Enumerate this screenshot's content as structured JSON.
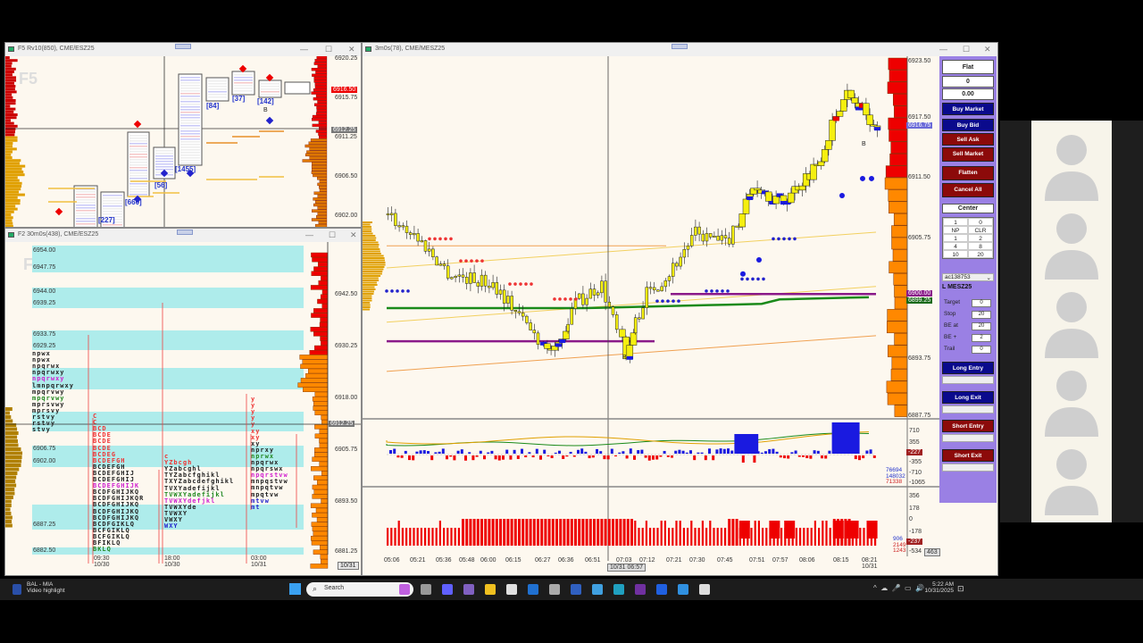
{
  "windows": {
    "top_left": {
      "title": "F5 Rv10(850), CME/ESZ25",
      "watermark": "F5",
      "price_axis": [
        "6920.25",
        "6915.75",
        "6911.25",
        "6906.50",
        "6902.00"
      ],
      "last_price": "6916.50",
      "crosshair_price": "6912.25",
      "bar_counts": [
        "[227]",
        "[660]",
        "[56]",
        "[1455]",
        "[84]",
        "[37]",
        "[142]"
      ],
      "marker_b": "B"
    },
    "bottom_left": {
      "title": "F2 30m0s(438), CME/ESZ25",
      "watermark": "F",
      "band_labels": [
        "6954.00",
        "6947.75",
        "6944.00",
        "6939.25",
        "6933.75",
        "6929.25",
        "6906.75",
        "6902.00",
        "6887.25",
        "6882.50"
      ],
      "price_axis": [
        "6942.50",
        "6930.25",
        "6918.00",
        "6905.75",
        "6893.50",
        "6881.25"
      ],
      "crosshair_price": "6912.25",
      "time_axis": [
        {
          "t": "09:30",
          "d": "10/30"
        },
        {
          "t": "18:00",
          "d": "10/30"
        },
        {
          "t": "03:00",
          "d": "10/31"
        }
      ],
      "corner_label": "10/31",
      "profile1": [
        "npwx",
        "npwx",
        "npqrwx",
        "npqrwxy",
        "npqrwxy",
        "lmnpqrwxy",
        "mpqrvwy",
        "mpqrvwy",
        "mprsvwy",
        "mprsvy",
        "rstvy",
        "rstvy",
        "stvy"
      ],
      "profile2": [
        "C",
        "C",
        "BCD",
        "BCDE",
        "BCDE",
        "BCDE",
        "BCDEG",
        "BCDEFGH",
        "BCDEFGH",
        "BCDEFGHIJ",
        "BCDEFGHIJ",
        "BCDEFGHIJK",
        "BCDFGHIJKQ",
        "BCDFGHIJKQR",
        "BCDFGHIJKQ",
        "BCDFGHIJKQ",
        "BCDFGHIJKQ",
        "BCDFGIKLQ",
        "BCFGIKLQ",
        "BCFGIKLQ",
        "BFIKLQ",
        "BKLQ"
      ],
      "profile3": [
        "c",
        "YZbcgh",
        "YZabcghl",
        "TYZabcfghikl",
        "TXYZabcdefghikl",
        "TVXYadefijkl",
        "TVWXYadefijkl",
        "TVWXYdefjkl",
        "TVWXYde",
        "TVWXY",
        "VWXY",
        "WXY"
      ],
      "profile4": [
        "y",
        "y",
        "y",
        "y",
        "y",
        "xy",
        "xy",
        "xy",
        "nprxy",
        "nprwx",
        "npqrwx",
        "npqrswx",
        "npqrstvw",
        "mnpqstvw",
        "mnpqtvw",
        "mpqtvw",
        "mtvw",
        "mt"
      ]
    },
    "main": {
      "title": "3m0s(78), CME/MESZ25",
      "price_axis": [
        "6923.50",
        "6917.50",
        "6911.50",
        "6905.75",
        "6893.75",
        "6887.75"
      ],
      "last_price": "6916.75",
      "poc_price": "6900.00",
      "vwap_price": "6899.25",
      "marker_b": "B",
      "time_axis": [
        "05:06",
        "05:21",
        "05:36",
        "05:48",
        "06:00",
        "06:15",
        "06:27",
        "06:36",
        "06:51",
        "07:03",
        "07:12",
        "07:21",
        "07:30",
        "07:45",
        "07:51",
        "07:57",
        "08:06",
        "08:15",
        "08:21"
      ],
      "date_under_last_tick": "10/31",
      "crosshair_time": "10/31 06:57",
      "pane1_axis": [
        "710",
        "355",
        "-355",
        "-710",
        "-1065"
      ],
      "pane1_value": "-227",
      "pane1_readouts": [
        {
          "v": "76694",
          "c": "#2233cc"
        },
        {
          "v": "148032",
          "c": "#2233cc"
        },
        {
          "v": "71338",
          "c": "#cc2222"
        }
      ],
      "pane2_axis": [
        "356",
        "178",
        "0",
        "-178",
        "-534"
      ],
      "pane2_value": "-237",
      "pane2_corner": "463",
      "pane2_readouts": [
        {
          "v": "906",
          "c": "#2233cc"
        },
        {
          "v": "2149",
          "c": "#cc2222"
        },
        {
          "v": "1243",
          "c": "#cc2222"
        }
      ]
    }
  },
  "order_panel": {
    "position": "Flat",
    "qty": "0",
    "pnl": "0.00",
    "buy_market": "Buy Market",
    "buy_bid": "Buy Bid",
    "sell_ask": "Sell Ask",
    "sell_market": "Sell Market",
    "flatten": "Flatten",
    "cancel_all": "Cancel All",
    "center": "Center",
    "qty_input": "1",
    "qty_right": "0",
    "qty_grid": [
      "NP",
      "CLR",
      "1",
      "2",
      "4",
      "8",
      "10",
      "20"
    ],
    "account": "ac138753",
    "instrument": "L MESZ25",
    "fields": [
      {
        "label": "Target",
        "value": "0"
      },
      {
        "label": "Stop",
        "value": "20"
      },
      {
        "label": "BE at",
        "value": "20"
      },
      {
        "label": "BE +",
        "value": "2"
      },
      {
        "label": "Trail",
        "value": "0"
      }
    ],
    "long_entry": "Long Entry",
    "long_exit": "Long Exit",
    "short_entry": "Short Entry",
    "short_exit": "Short Exit"
  },
  "taskbar": {
    "news_title": "BAL - MIA",
    "news_sub": "Video highlight",
    "search_placeholder": "Search",
    "time": "5:22 AM",
    "date": "10/31/2025"
  },
  "colors": {
    "buy": "#0a0a8c",
    "sell": "#8c0a0a",
    "panel": "#9a80e4",
    "chart_bg": "#fdf8ef",
    "band": "#aeeceb",
    "profile_up": "#ee0000",
    "profile_down": "#ff8800"
  }
}
